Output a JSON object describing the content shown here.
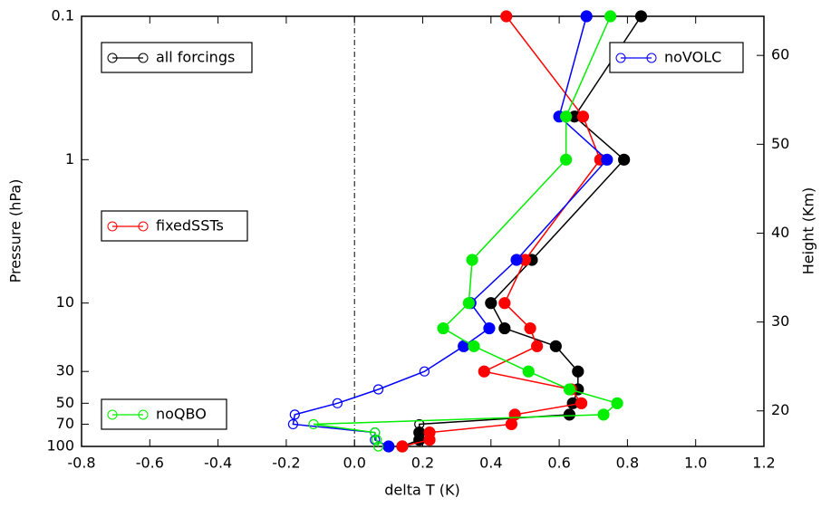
{
  "chart_data": {
    "type": "line",
    "x_label": "delta T (K)",
    "y_label": "Pressure (hPa)",
    "y2_label": "Height (Km)",
    "y": [
      0.1,
      0.5,
      1,
      5,
      10,
      15,
      20,
      30,
      40,
      50,
      60,
      70,
      80,
      90,
      100
    ],
    "series": [
      {
        "name": "all forcings",
        "color": "#000000",
        "values": [
          0.84,
          0.645,
          0.79,
          0.52,
          0.4,
          0.44,
          0.59,
          0.655,
          0.655,
          0.64,
          0.63,
          0.19,
          0.19,
          0.19,
          0.14
        ],
        "filled": [
          true,
          true,
          true,
          true,
          true,
          true,
          true,
          true,
          true,
          true,
          true,
          false,
          true,
          true,
          true
        ]
      },
      {
        "name": "fixedSSTs",
        "color": "#ff0000",
        "values": [
          0.445,
          0.67,
          0.72,
          0.5,
          0.44,
          0.515,
          0.535,
          0.38,
          0.635,
          0.665,
          0.47,
          0.46,
          0.22,
          0.22,
          0.14
        ],
        "filled": [
          true,
          true,
          true,
          true,
          true,
          true,
          true,
          true,
          true,
          true,
          true,
          true,
          true,
          true,
          true
        ]
      },
      {
        "name": "noVOLC",
        "color": "#0000ff",
        "values": [
          0.68,
          0.6,
          0.74,
          0.475,
          0.34,
          0.395,
          0.32,
          0.205,
          0.07,
          -0.05,
          -0.175,
          -0.18,
          0.06,
          0.06,
          0.1
        ],
        "filled": [
          true,
          true,
          true,
          true,
          true,
          true,
          true,
          false,
          false,
          false,
          false,
          false,
          false,
          false,
          true
        ]
      },
      {
        "name": "noQBO",
        "color": "#00ee00",
        "values": [
          0.75,
          0.62,
          0.62,
          0.345,
          0.335,
          0.26,
          0.35,
          0.51,
          0.63,
          0.77,
          0.73,
          -0.12,
          0.06,
          0.065,
          0.07
        ],
        "filled": [
          true,
          true,
          true,
          true,
          true,
          true,
          true,
          true,
          true,
          true,
          true,
          false,
          false,
          false,
          false
        ]
      }
    ],
    "xlim": [
      -0.8,
      1.2
    ],
    "xticks": [
      -0.8,
      -0.6,
      -0.4,
      -0.2,
      {
        "value": 0,
        "label": "0.0"
      },
      0.2,
      0.4,
      0.6,
      0.8,
      {
        "value": 1,
        "label": "1.0"
      },
      1.2
    ],
    "ylim": [
      0.1,
      100
    ],
    "y_log": true,
    "y_inverted": true,
    "yticks": [
      0.1,
      1,
      10,
      30,
      50,
      70,
      100
    ],
    "y2lim": [
      16.0,
      64.4
    ],
    "y2ticks": [
      20,
      30,
      40,
      50,
      60
    ],
    "reference_line_x": 0
  }
}
